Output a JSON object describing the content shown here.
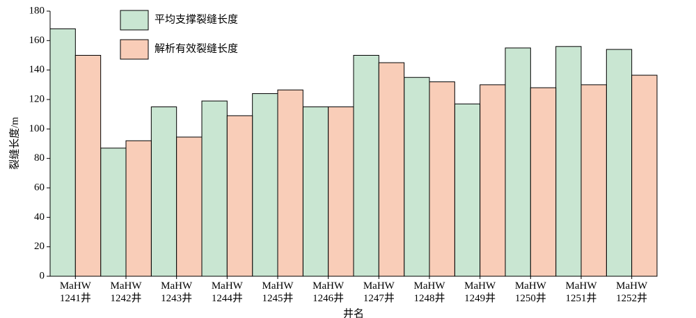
{
  "chart_data": {
    "type": "bar",
    "y_label": "裂缝长度/m",
    "x_label": "井名",
    "categories": [
      "MaHW\n1241井",
      "MaHW\n1242井",
      "MaHW\n1243井",
      "MaHW\n1244井",
      "MaHW\n1245井",
      "MaHW\n1246井",
      "MaHW\n1247井",
      "MaHW\n1248井",
      "MaHW\n1249井",
      "MaHW\n1250井",
      "MaHW\n1251井",
      "MaHW\n1252井"
    ],
    "series": [
      {
        "name": "平均支撑裂缝长度",
        "color": "#c9e6d2",
        "values": [
          168,
          87,
          115,
          119,
          124,
          115,
          150,
          135,
          117,
          155,
          156,
          154
        ]
      },
      {
        "name": "解析有效裂缝长度",
        "color": "#f9cdb8",
        "values": [
          150,
          92,
          94.5,
          109,
          126.5,
          115,
          145,
          132,
          130,
          128,
          130,
          136.5
        ]
      }
    ],
    "ylim": [
      0,
      180
    ],
    "yticks": [
      0,
      20,
      40,
      60,
      80,
      100,
      120,
      140,
      160,
      180
    ],
    "legend": "upper-left",
    "grid": false
  }
}
